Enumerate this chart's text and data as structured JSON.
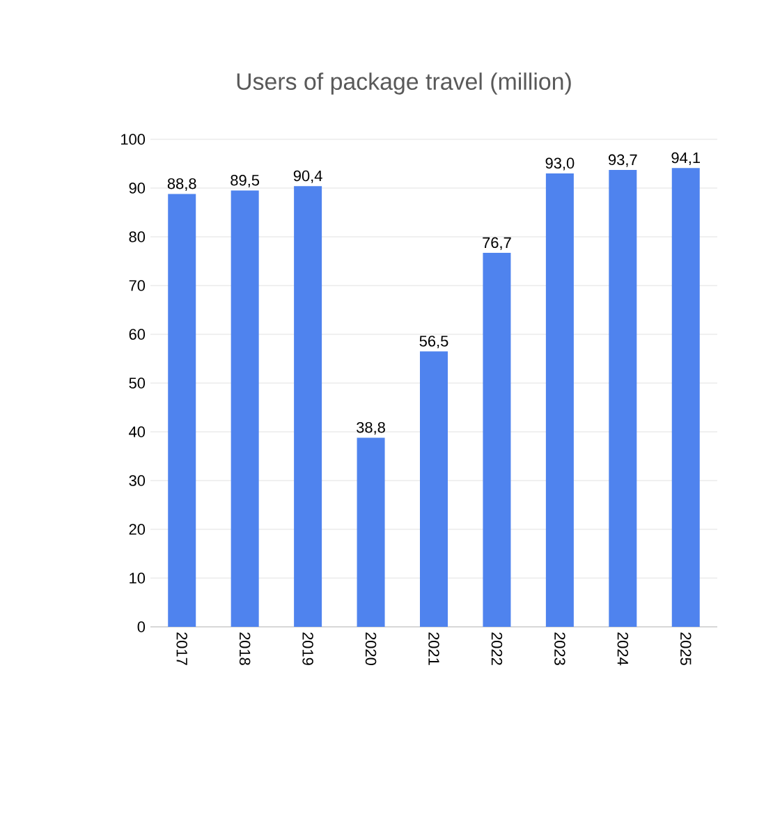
{
  "chart_data": {
    "type": "bar",
    "title": "Users of package travel (million)",
    "categories": [
      "2017",
      "2018",
      "2019",
      "2020",
      "2021",
      "2022",
      "2023",
      "2024",
      "2025"
    ],
    "values": [
      88.8,
      89.5,
      90.4,
      38.8,
      56.5,
      76.7,
      93.0,
      93.7,
      94.1
    ],
    "value_labels": [
      "88,8",
      "89,5",
      "90,4",
      "38,8",
      "56,5",
      "76,7",
      "93,0",
      "93,7",
      "94,1"
    ],
    "color": "#4f83ee",
    "ylim": [
      0,
      100
    ],
    "yticks": [
      0,
      10,
      20,
      30,
      40,
      50,
      60,
      70,
      80,
      90,
      100
    ],
    "grid": "y"
  }
}
